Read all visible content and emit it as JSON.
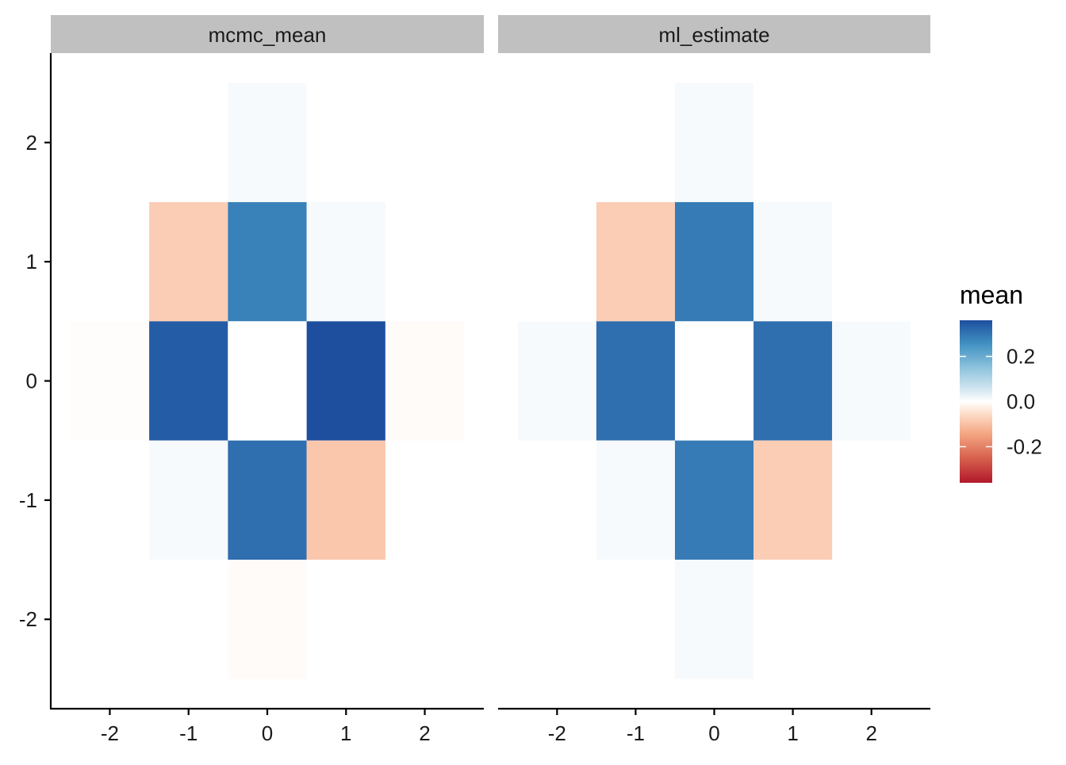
{
  "chart_data": {
    "type": "heatmap",
    "facets": [
      {
        "name": "mcmc_mean",
        "cells": [
          {
            "x": 0,
            "y": 2,
            "value": 0.01
          },
          {
            "x": -1,
            "y": 1,
            "value": -0.08
          },
          {
            "x": 0,
            "y": 1,
            "value": 0.28
          },
          {
            "x": 1,
            "y": 1,
            "value": 0.01
          },
          {
            "x": -2,
            "y": 0,
            "value": -0.004
          },
          {
            "x": -1,
            "y": 0,
            "value": 0.34
          },
          {
            "x": 0,
            "y": 0,
            "value": 0.0
          },
          {
            "x": 1,
            "y": 0,
            "value": 0.36
          },
          {
            "x": 2,
            "y": 0,
            "value": -0.006
          },
          {
            "x": -1,
            "y": -1,
            "value": 0.01
          },
          {
            "x": 0,
            "y": -1,
            "value": 0.31
          },
          {
            "x": 1,
            "y": -1,
            "value": -0.09
          },
          {
            "x": 0,
            "y": -2,
            "value": -0.006
          }
        ]
      },
      {
        "name": "ml_estimate",
        "cells": [
          {
            "x": 0,
            "y": 2,
            "value": 0.01
          },
          {
            "x": -1,
            "y": 1,
            "value": -0.08
          },
          {
            "x": 0,
            "y": 1,
            "value": 0.29
          },
          {
            "x": 1,
            "y": 1,
            "value": 0.01
          },
          {
            "x": -2,
            "y": 0,
            "value": 0.01
          },
          {
            "x": -1,
            "y": 0,
            "value": 0.31
          },
          {
            "x": 0,
            "y": 0,
            "value": 0.0
          },
          {
            "x": 1,
            "y": 0,
            "value": 0.31
          },
          {
            "x": 2,
            "y": 0,
            "value": 0.01
          },
          {
            "x": -1,
            "y": -1,
            "value": 0.01
          },
          {
            "x": 0,
            "y": -1,
            "value": 0.29
          },
          {
            "x": 1,
            "y": -1,
            "value": -0.08
          },
          {
            "x": 0,
            "y": -2,
            "value": 0.01
          }
        ]
      }
    ],
    "xlim": [
      -2.75,
      2.75
    ],
    "ylim": [
      -2.75,
      2.75
    ],
    "x_ticks": [
      -2,
      -1,
      0,
      1,
      2
    ],
    "y_ticks": [
      -2,
      -1,
      0,
      1,
      2
    ],
    "x_tick_labels": [
      "-2",
      "-1",
      "0",
      "1",
      "2"
    ],
    "y_tick_labels": [
      "-2",
      "-1",
      "0",
      "1",
      "2"
    ],
    "xlabel": "",
    "ylabel": "",
    "grid": false,
    "legend": {
      "title": "mean",
      "position": "right",
      "limits": [
        -0.36,
        0.36
      ],
      "ticks": [
        0.2,
        0.0,
        -0.2
      ],
      "tick_labels": [
        "0.2",
        "0.0",
        "-0.2"
      ]
    },
    "colors": {
      "high": "#1d4f9e",
      "mid": "#ffffff",
      "low": "#b2182b",
      "strip": "#c0c0c0"
    }
  }
}
